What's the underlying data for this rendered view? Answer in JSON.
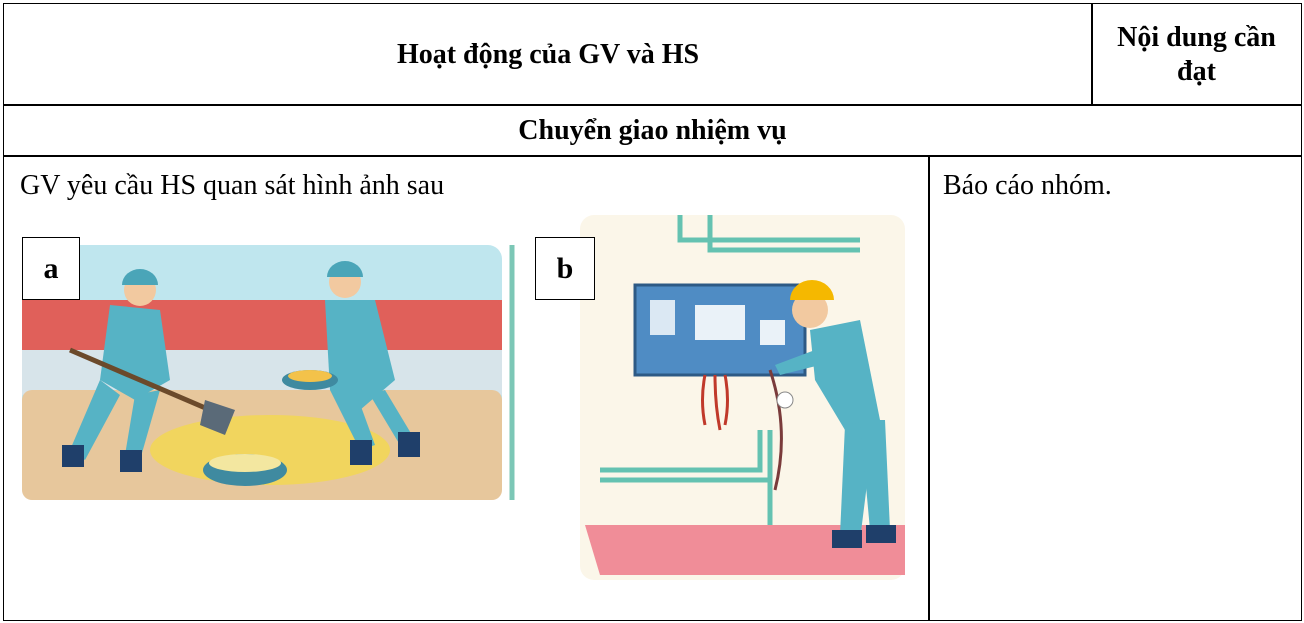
{
  "table": {
    "header": [
      "Hoạt động của GV và HS",
      "Nội dung cần đạt"
    ],
    "section": "Chuyển giao nhiệm vụ",
    "rows": [
      [
        "GV yêu cầu HS quan sát hình ảnh sau",
        "Báo cáo nhóm."
      ]
    ]
  },
  "figures": {
    "labels": [
      "a",
      "b"
    ]
  }
}
